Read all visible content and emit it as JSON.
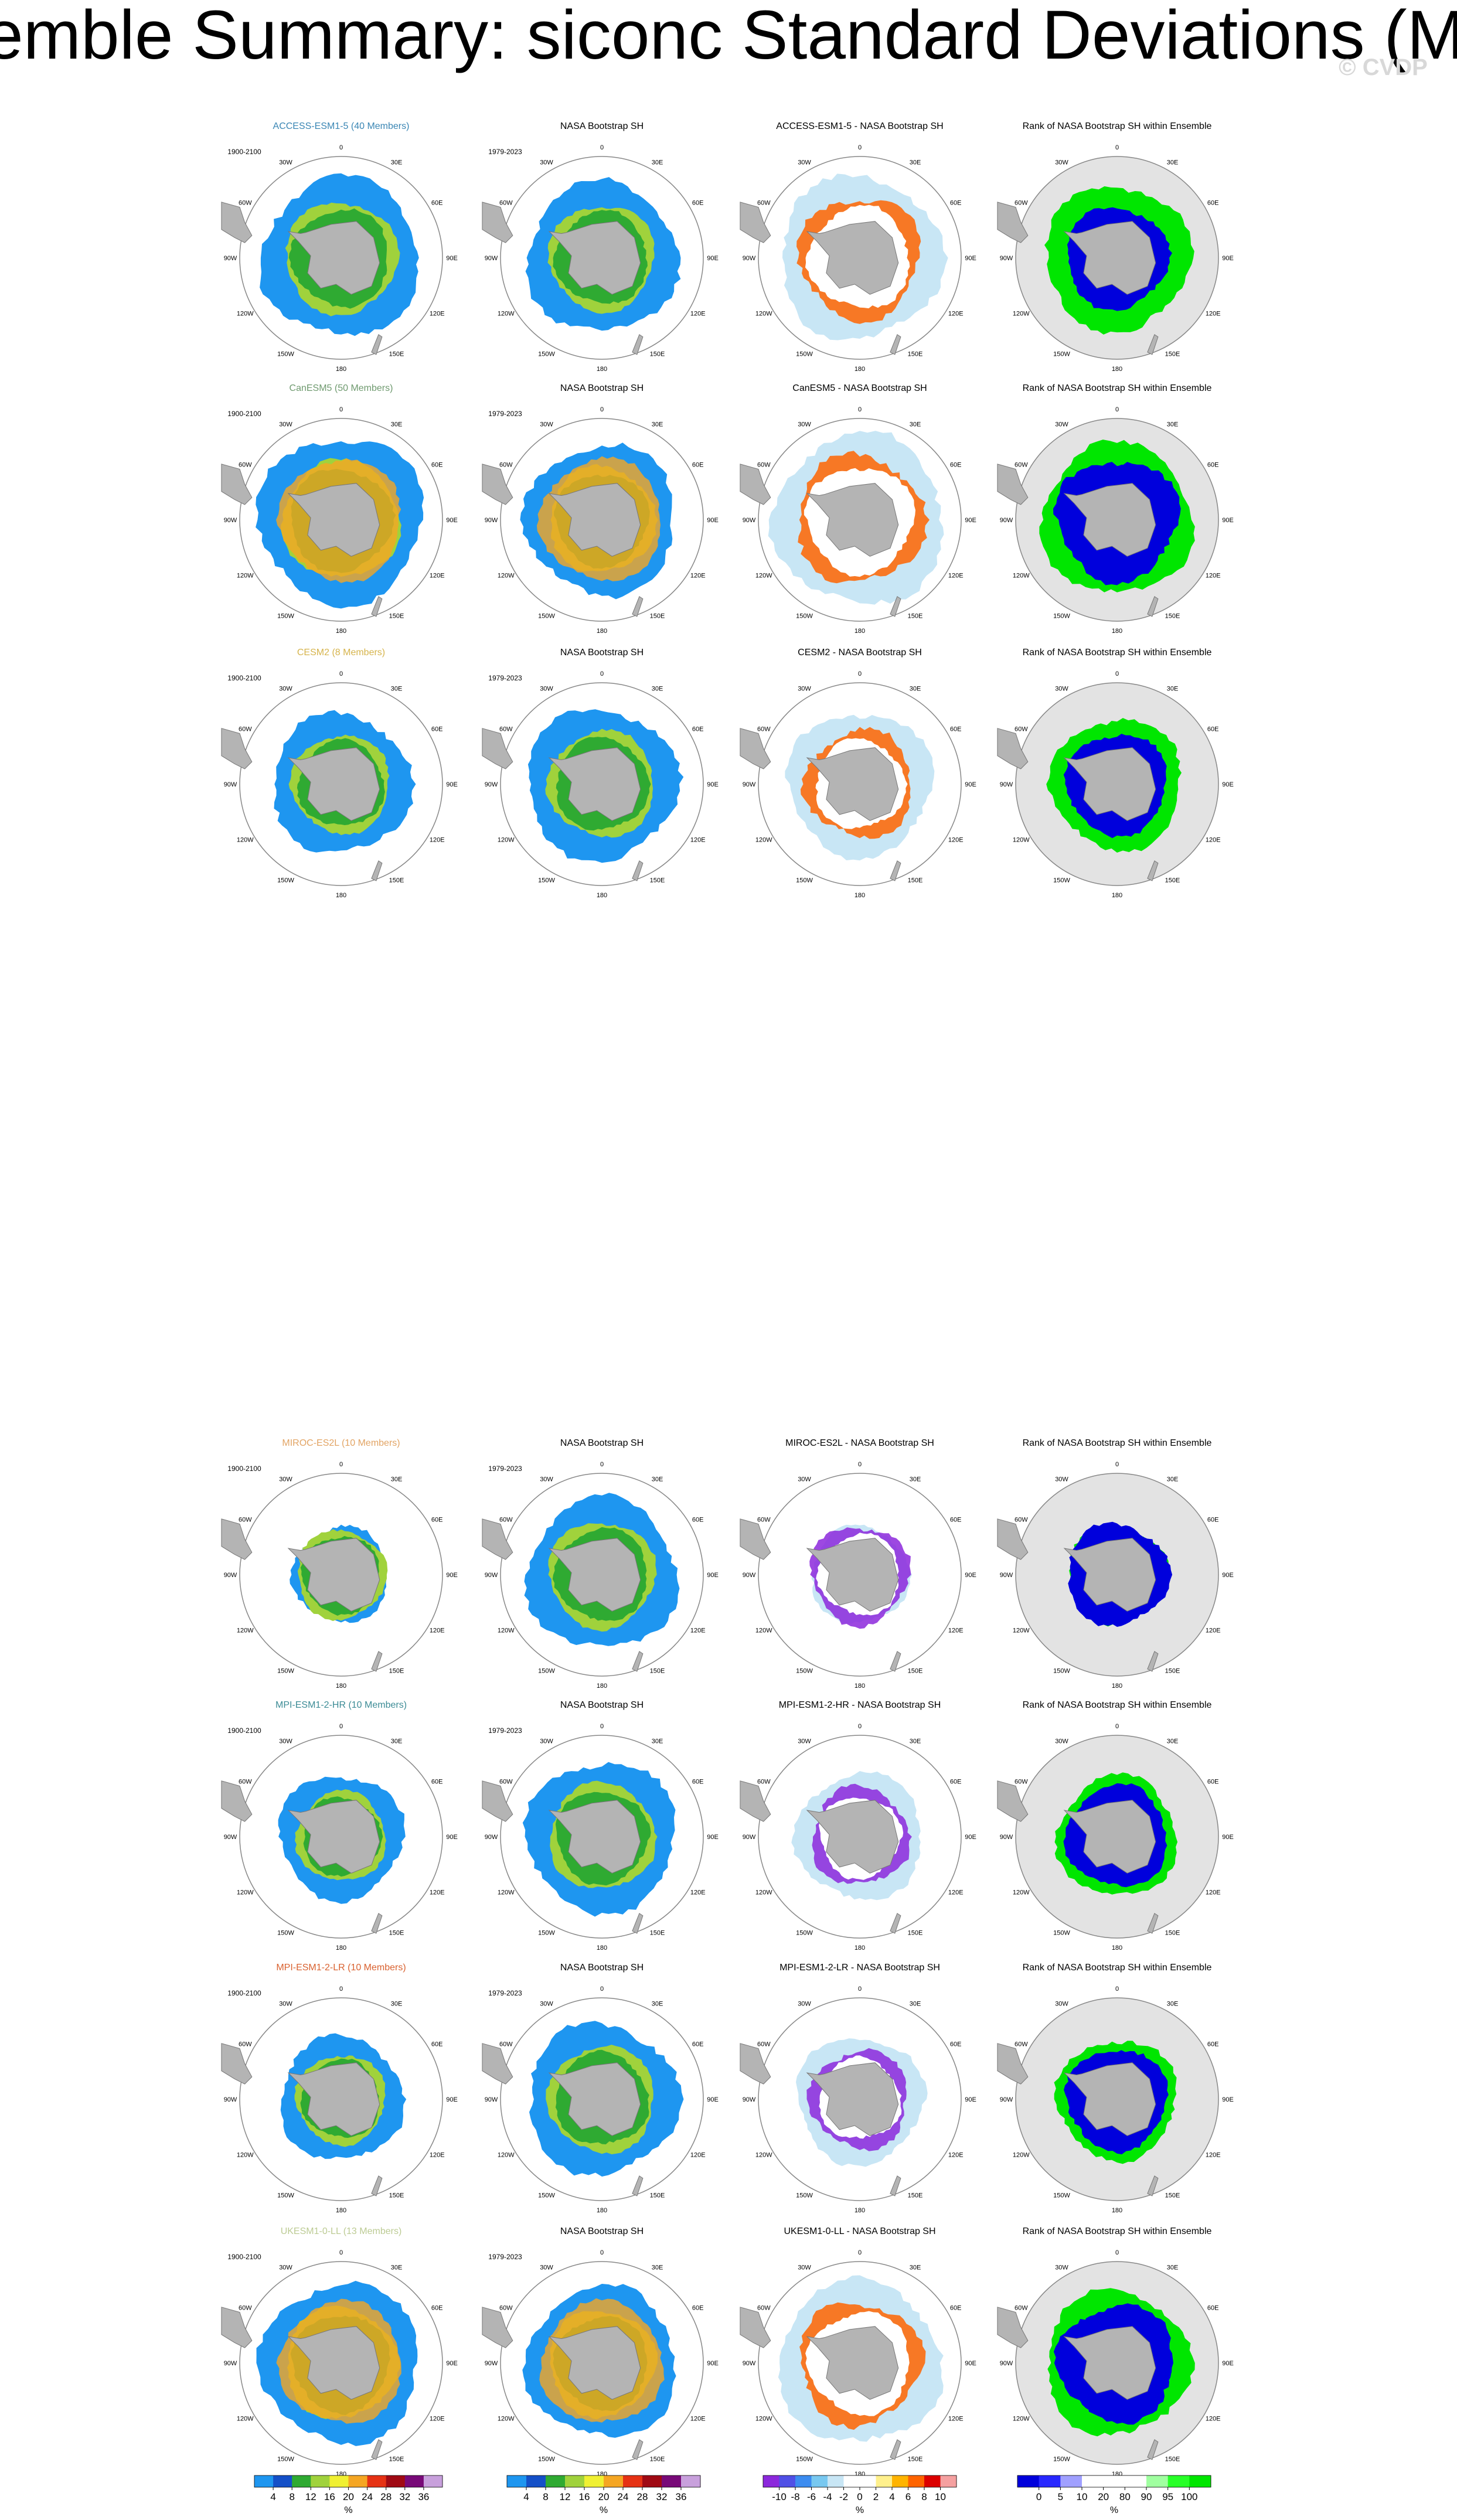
{
  "title": "Ensemble Summary: siconc Standard Deviations (MAM)",
  "watermark": "© CVDP",
  "lon_labels": [
    "0",
    "30E",
    "60E",
    "90E",
    "120E",
    "150E",
    "180",
    "150W",
    "120W",
    "90W",
    "60W",
    "30W"
  ],
  "rows": [
    {
      "panels": [
        {
          "title": "ACCESS-ESM1-5 (40 Members)",
          "title_color": "#3a86b4",
          "period": "1900-2100"
        },
        {
          "title": "NASA Bootstrap SH",
          "period": "1979-2023"
        },
        {
          "title": "ACCESS-ESM1-5 - NASA Bootstrap SH"
        },
        {
          "title": "Rank of NASA Bootstrap SH within Ensemble"
        }
      ]
    },
    {
      "panels": [
        {
          "title": "CanESM5 (50 Members)",
          "title_color": "#6f9a6f",
          "period": "1900-2100"
        },
        {
          "title": "NASA Bootstrap SH",
          "period": "1979-2023"
        },
        {
          "title": "CanESM5 - NASA Bootstrap SH"
        },
        {
          "title": "Rank of NASA Bootstrap SH within Ensemble"
        }
      ]
    },
    {
      "panels": [
        {
          "title": "CESM2 (8 Members)",
          "title_color": "#d6b44c",
          "period": "1900-2100"
        },
        {
          "title": "NASA Bootstrap SH",
          "period": "1979-2023"
        },
        {
          "title": "CESM2 - NASA Bootstrap SH"
        },
        {
          "title": "Rank of NASA Bootstrap SH within Ensemble"
        }
      ]
    },
    {
      "panels": [
        {
          "title": "MIROC-ES2L (10 Members)",
          "title_color": "#e2a464",
          "period": "1900-2100"
        },
        {
          "title": "NASA Bootstrap SH",
          "period": "1979-2023"
        },
        {
          "title": "MIROC-ES2L - NASA Bootstrap SH"
        },
        {
          "title": "Rank of NASA Bootstrap SH within Ensemble"
        }
      ]
    },
    {
      "panels": [
        {
          "title": "MPI-ESM1-2-HR (10 Members)",
          "title_color": "#3d8c96",
          "period": "1900-2100"
        },
        {
          "title": "NASA Bootstrap SH",
          "period": "1979-2023"
        },
        {
          "title": "MPI-ESM1-2-HR - NASA Bootstrap SH"
        },
        {
          "title": "Rank of NASA Bootstrap SH within Ensemble"
        }
      ]
    },
    {
      "panels": [
        {
          "title": "MPI-ESM1-2-LR (10 Members)",
          "title_color": "#d9612f",
          "period": "1900-2100"
        },
        {
          "title": "NASA Bootstrap SH",
          "period": "1979-2023"
        },
        {
          "title": "MPI-ESM1-2-LR - NASA Bootstrap SH"
        },
        {
          "title": "Rank of NASA Bootstrap SH within Ensemble"
        }
      ]
    },
    {
      "panels": [
        {
          "title": "UKESM1-0-LL (13 Members)",
          "title_color": "#bccb94",
          "period": "1900-2100"
        },
        {
          "title": "NASA Bootstrap SH",
          "period": "1979-2023"
        },
        {
          "title": "UKESM1-0-LL - NASA Bootstrap SH"
        },
        {
          "title": "Rank of NASA Bootstrap SH within Ensemble"
        }
      ]
    }
  ],
  "colorbars": [
    {
      "colors": [
        "#1e96f0",
        "#1450c8",
        "#2faa32",
        "#a0d23c",
        "#f0f032",
        "#f5a623",
        "#e63214",
        "#a00a14",
        "#780a78",
        "#c8a0dc"
      ],
      "ticks": [
        4,
        8,
        12,
        16,
        20,
        24,
        28,
        32,
        36
      ],
      "units": "%"
    },
    {
      "colors": [
        "#1e96f0",
        "#1450c8",
        "#2faa32",
        "#a0d23c",
        "#f0f032",
        "#f5a623",
        "#e63214",
        "#a00a14",
        "#780a78",
        "#c8a0dc"
      ],
      "ticks": [
        4,
        8,
        12,
        16,
        20,
        24,
        28,
        32,
        36
      ],
      "units": "%"
    },
    {
      "colors": [
        "#8c28dc",
        "#5050e6",
        "#3c8cf0",
        "#78c8f0",
        "#c8e6f5",
        "#ffffff",
        "#ffffff",
        "#fff08c",
        "#ffb400",
        "#ff6400",
        "#dc0000",
        "#f5a0a0"
      ],
      "ticks": [
        -10,
        -8,
        -6,
        -4,
        -2,
        0,
        2,
        4,
        6,
        8,
        10
      ],
      "units": "%"
    },
    {
      "colors": [
        "#0000dc",
        "#2828ff",
        "#a0a0ff",
        "#ffffff",
        "#ffffff",
        "#ffffff",
        "#a0ffa0",
        "#28ff28",
        "#00e600"
      ],
      "ticks": [
        0,
        5,
        10,
        20,
        80,
        90,
        95,
        100
      ],
      "units": "%"
    }
  ]
}
